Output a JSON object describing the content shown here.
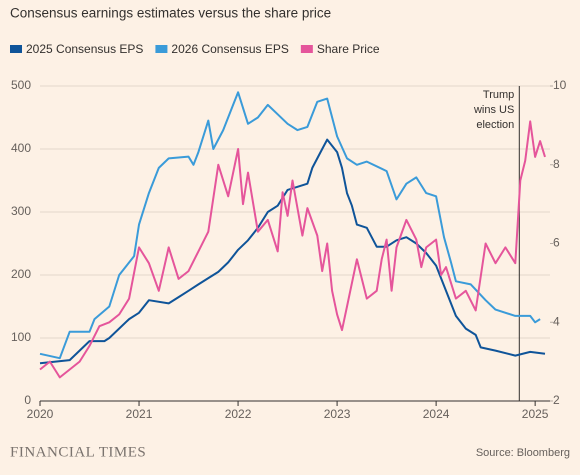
{
  "chart_data": {
    "type": "line",
    "title": "Consensus earnings estimates versus the share price",
    "xlim": [
      2020,
      2025.15
    ],
    "xticks": [
      2020,
      2021,
      2022,
      2023,
      2024,
      2025
    ],
    "ylim": [
      0,
      500
    ],
    "yticks": [
      0,
      100,
      200,
      300,
      400,
      500
    ],
    "y2lim": [
      2,
      10
    ],
    "y2ticks": [
      2,
      4,
      6,
      8,
      10
    ],
    "grid": true,
    "legend": "top-left",
    "series": [
      {
        "name": "2025 Consensus EPS",
        "color": "#0f5499",
        "x": [
          2020.0,
          2020.3,
          2020.5,
          2020.65,
          2020.7,
          2020.9,
          2021.0,
          2021.1,
          2021.3,
          2021.4,
          2021.5,
          2021.6,
          2021.7,
          2021.8,
          2021.9,
          2022.0,
          2022.1,
          2022.2,
          2022.3,
          2022.4,
          2022.5,
          2022.6,
          2022.7,
          2022.75,
          2022.85,
          2022.9,
          2023.0,
          2023.05,
          2023.1,
          2023.15,
          2023.2,
          2023.3,
          2023.4,
          2023.5,
          2023.6,
          2023.7,
          2023.8,
          2023.9,
          2024.0,
          2024.1,
          2024.2,
          2024.3,
          2024.4,
          2024.45,
          2024.6,
          2024.8,
          2024.95,
          2025.1
        ],
        "values": [
          60,
          65,
          95,
          95,
          100,
          130,
          140,
          160,
          155,
          165,
          175,
          185,
          195,
          205,
          220,
          240,
          255,
          275,
          300,
          310,
          335,
          340,
          345,
          370,
          400,
          415,
          395,
          370,
          330,
          310,
          280,
          275,
          245,
          245,
          255,
          260,
          250,
          235,
          215,
          175,
          135,
          115,
          105,
          85,
          80,
          72,
          78,
          75
        ]
      },
      {
        "name": "2026 Consensus EPS",
        "color": "#3a9bd9",
        "x": [
          2020.0,
          2020.2,
          2020.3,
          2020.5,
          2020.55,
          2020.7,
          2020.8,
          2020.95,
          2021.0,
          2021.1,
          2021.2,
          2021.3,
          2021.5,
          2021.55,
          2021.6,
          2021.7,
          2021.75,
          2021.85,
          2021.95,
          2022.0,
          2022.1,
          2022.2,
          2022.3,
          2022.4,
          2022.5,
          2022.6,
          2022.7,
          2022.8,
          2022.9,
          2023.0,
          2023.1,
          2023.2,
          2023.3,
          2023.5,
          2023.6,
          2023.7,
          2023.8,
          2023.9,
          2024.0,
          2024.08,
          2024.15,
          2024.2,
          2024.35,
          2024.5,
          2024.6,
          2024.8,
          2024.95,
          2025.0,
          2025.05
        ],
        "values": [
          75,
          68,
          110,
          110,
          130,
          150,
          200,
          230,
          280,
          330,
          370,
          385,
          388,
          375,
          395,
          445,
          400,
          430,
          470,
          490,
          440,
          450,
          470,
          455,
          440,
          430,
          435,
          475,
          480,
          420,
          385,
          375,
          380,
          365,
          320,
          345,
          355,
          330,
          325,
          260,
          220,
          190,
          185,
          160,
          145,
          135,
          135,
          125,
          130
        ]
      },
      {
        "name": "Share Price",
        "color": "#e5559b",
        "axis": "y2",
        "x": [
          2020.0,
          2020.1,
          2020.2,
          2020.3,
          2020.4,
          2020.5,
          2020.6,
          2020.7,
          2020.8,
          2020.9,
          2021.0,
          2021.1,
          2021.2,
          2021.3,
          2021.4,
          2021.5,
          2021.6,
          2021.7,
          2021.8,
          2021.9,
          2022.0,
          2022.05,
          2022.1,
          2022.2,
          2022.3,
          2022.4,
          2022.45,
          2022.5,
          2022.55,
          2022.65,
          2022.7,
          2022.8,
          2022.85,
          2022.9,
          2022.95,
          2023.0,
          2023.05,
          2023.1,
          2023.2,
          2023.3,
          2023.4,
          2023.45,
          2023.5,
          2023.55,
          2023.6,
          2023.7,
          2023.8,
          2023.85,
          2023.9,
          2024.0,
          2024.05,
          2024.1,
          2024.2,
          2024.3,
          2024.4,
          2024.5,
          2024.6,
          2024.7,
          2024.8,
          2024.85,
          2024.9,
          2024.95,
          2025.0,
          2025.05,
          2025.1
        ],
        "values": [
          2.8,
          3.0,
          2.6,
          2.8,
          3.0,
          3.4,
          3.9,
          4.0,
          4.2,
          4.6,
          5.9,
          5.5,
          4.8,
          5.9,
          5.1,
          5.3,
          5.8,
          6.3,
          8.0,
          7.2,
          8.4,
          7.0,
          7.8,
          6.3,
          6.6,
          5.8,
          7.3,
          6.7,
          7.6,
          6.2,
          6.9,
          6.2,
          5.3,
          6.0,
          4.8,
          4.2,
          3.8,
          4.4,
          5.6,
          4.6,
          4.8,
          5.6,
          6.1,
          4.8,
          5.9,
          6.6,
          6.1,
          5.4,
          5.9,
          6.1,
          5.2,
          5.4,
          4.6,
          4.8,
          4.3,
          6.0,
          5.5,
          5.9,
          5.5,
          7.6,
          8.1,
          9.1,
          8.2,
          8.6,
          8.2
        ]
      }
    ],
    "annotation": {
      "x": 2024.84,
      "text": [
        "Trump",
        "wins US",
        "election"
      ]
    },
    "footer": {
      "brand": "FINANCIAL TIMES",
      "source": "Source: Bloomberg"
    }
  }
}
